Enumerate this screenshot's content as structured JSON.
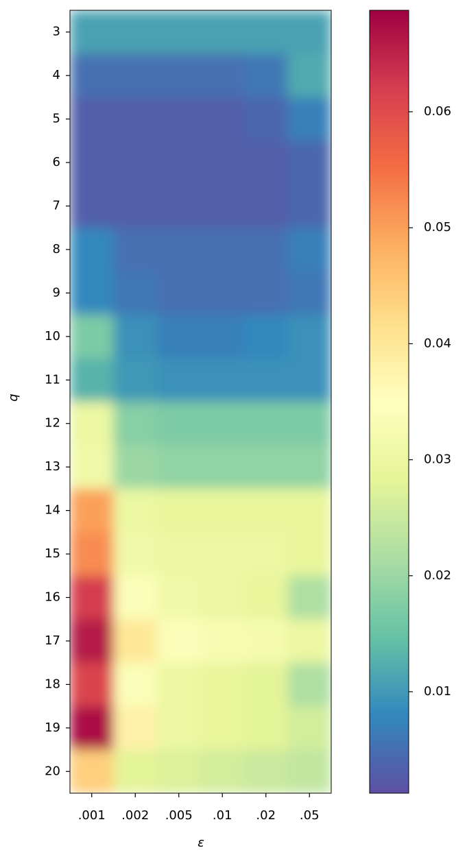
{
  "chart_data": {
    "type": "heatmap",
    "x_label": "ε",
    "y_label": "q",
    "x_categories": [
      ".001",
      ".002",
      ".005",
      ".01",
      ".02",
      ".05"
    ],
    "y_categories": [
      3,
      4,
      5,
      6,
      7,
      8,
      9,
      10,
      11,
      12,
      13,
      14,
      15,
      16,
      17,
      18,
      19,
      20
    ],
    "values": [
      [
        0.011,
        0.011,
        0.011,
        0.011,
        0.011,
        0.011
      ],
      [
        0.005,
        0.005,
        0.005,
        0.005,
        0.006,
        0.012
      ],
      [
        0.003,
        0.003,
        0.003,
        0.003,
        0.004,
        0.007
      ],
      [
        0.003,
        0.003,
        0.003,
        0.003,
        0.003,
        0.004
      ],
      [
        0.003,
        0.003,
        0.003,
        0.003,
        0.003,
        0.004
      ],
      [
        0.008,
        0.005,
        0.005,
        0.005,
        0.005,
        0.007
      ],
      [
        0.008,
        0.006,
        0.005,
        0.005,
        0.005,
        0.006
      ],
      [
        0.017,
        0.009,
        0.007,
        0.007,
        0.008,
        0.009
      ],
      [
        0.013,
        0.01,
        0.009,
        0.009,
        0.009,
        0.009
      ],
      [
        0.03,
        0.018,
        0.017,
        0.017,
        0.017,
        0.017
      ],
      [
        0.031,
        0.02,
        0.019,
        0.019,
        0.019,
        0.019
      ],
      [
        0.05,
        0.03,
        0.029,
        0.029,
        0.029,
        0.029
      ],
      [
        0.052,
        0.031,
        0.03,
        0.03,
        0.03,
        0.029
      ],
      [
        0.062,
        0.034,
        0.031,
        0.03,
        0.029,
        0.022
      ],
      [
        0.066,
        0.04,
        0.034,
        0.033,
        0.032,
        0.03
      ],
      [
        0.061,
        0.034,
        0.03,
        0.029,
        0.028,
        0.022
      ],
      [
        0.067,
        0.038,
        0.03,
        0.029,
        0.028,
        0.026
      ],
      [
        0.044,
        0.028,
        0.027,
        0.026,
        0.025,
        0.024
      ]
    ],
    "colormap": [
      "#5e4fa2",
      "#3288bd",
      "#66c2a5",
      "#abdda4",
      "#e6f598",
      "#ffffbf",
      "#fee08b",
      "#fdae61",
      "#f46d43",
      "#d53e4f",
      "#9e0142"
    ],
    "clim": [
      0.00125,
      0.06875
    ],
    "cticks": [
      0.01,
      0.02,
      0.03,
      0.04,
      0.05,
      0.06
    ]
  }
}
